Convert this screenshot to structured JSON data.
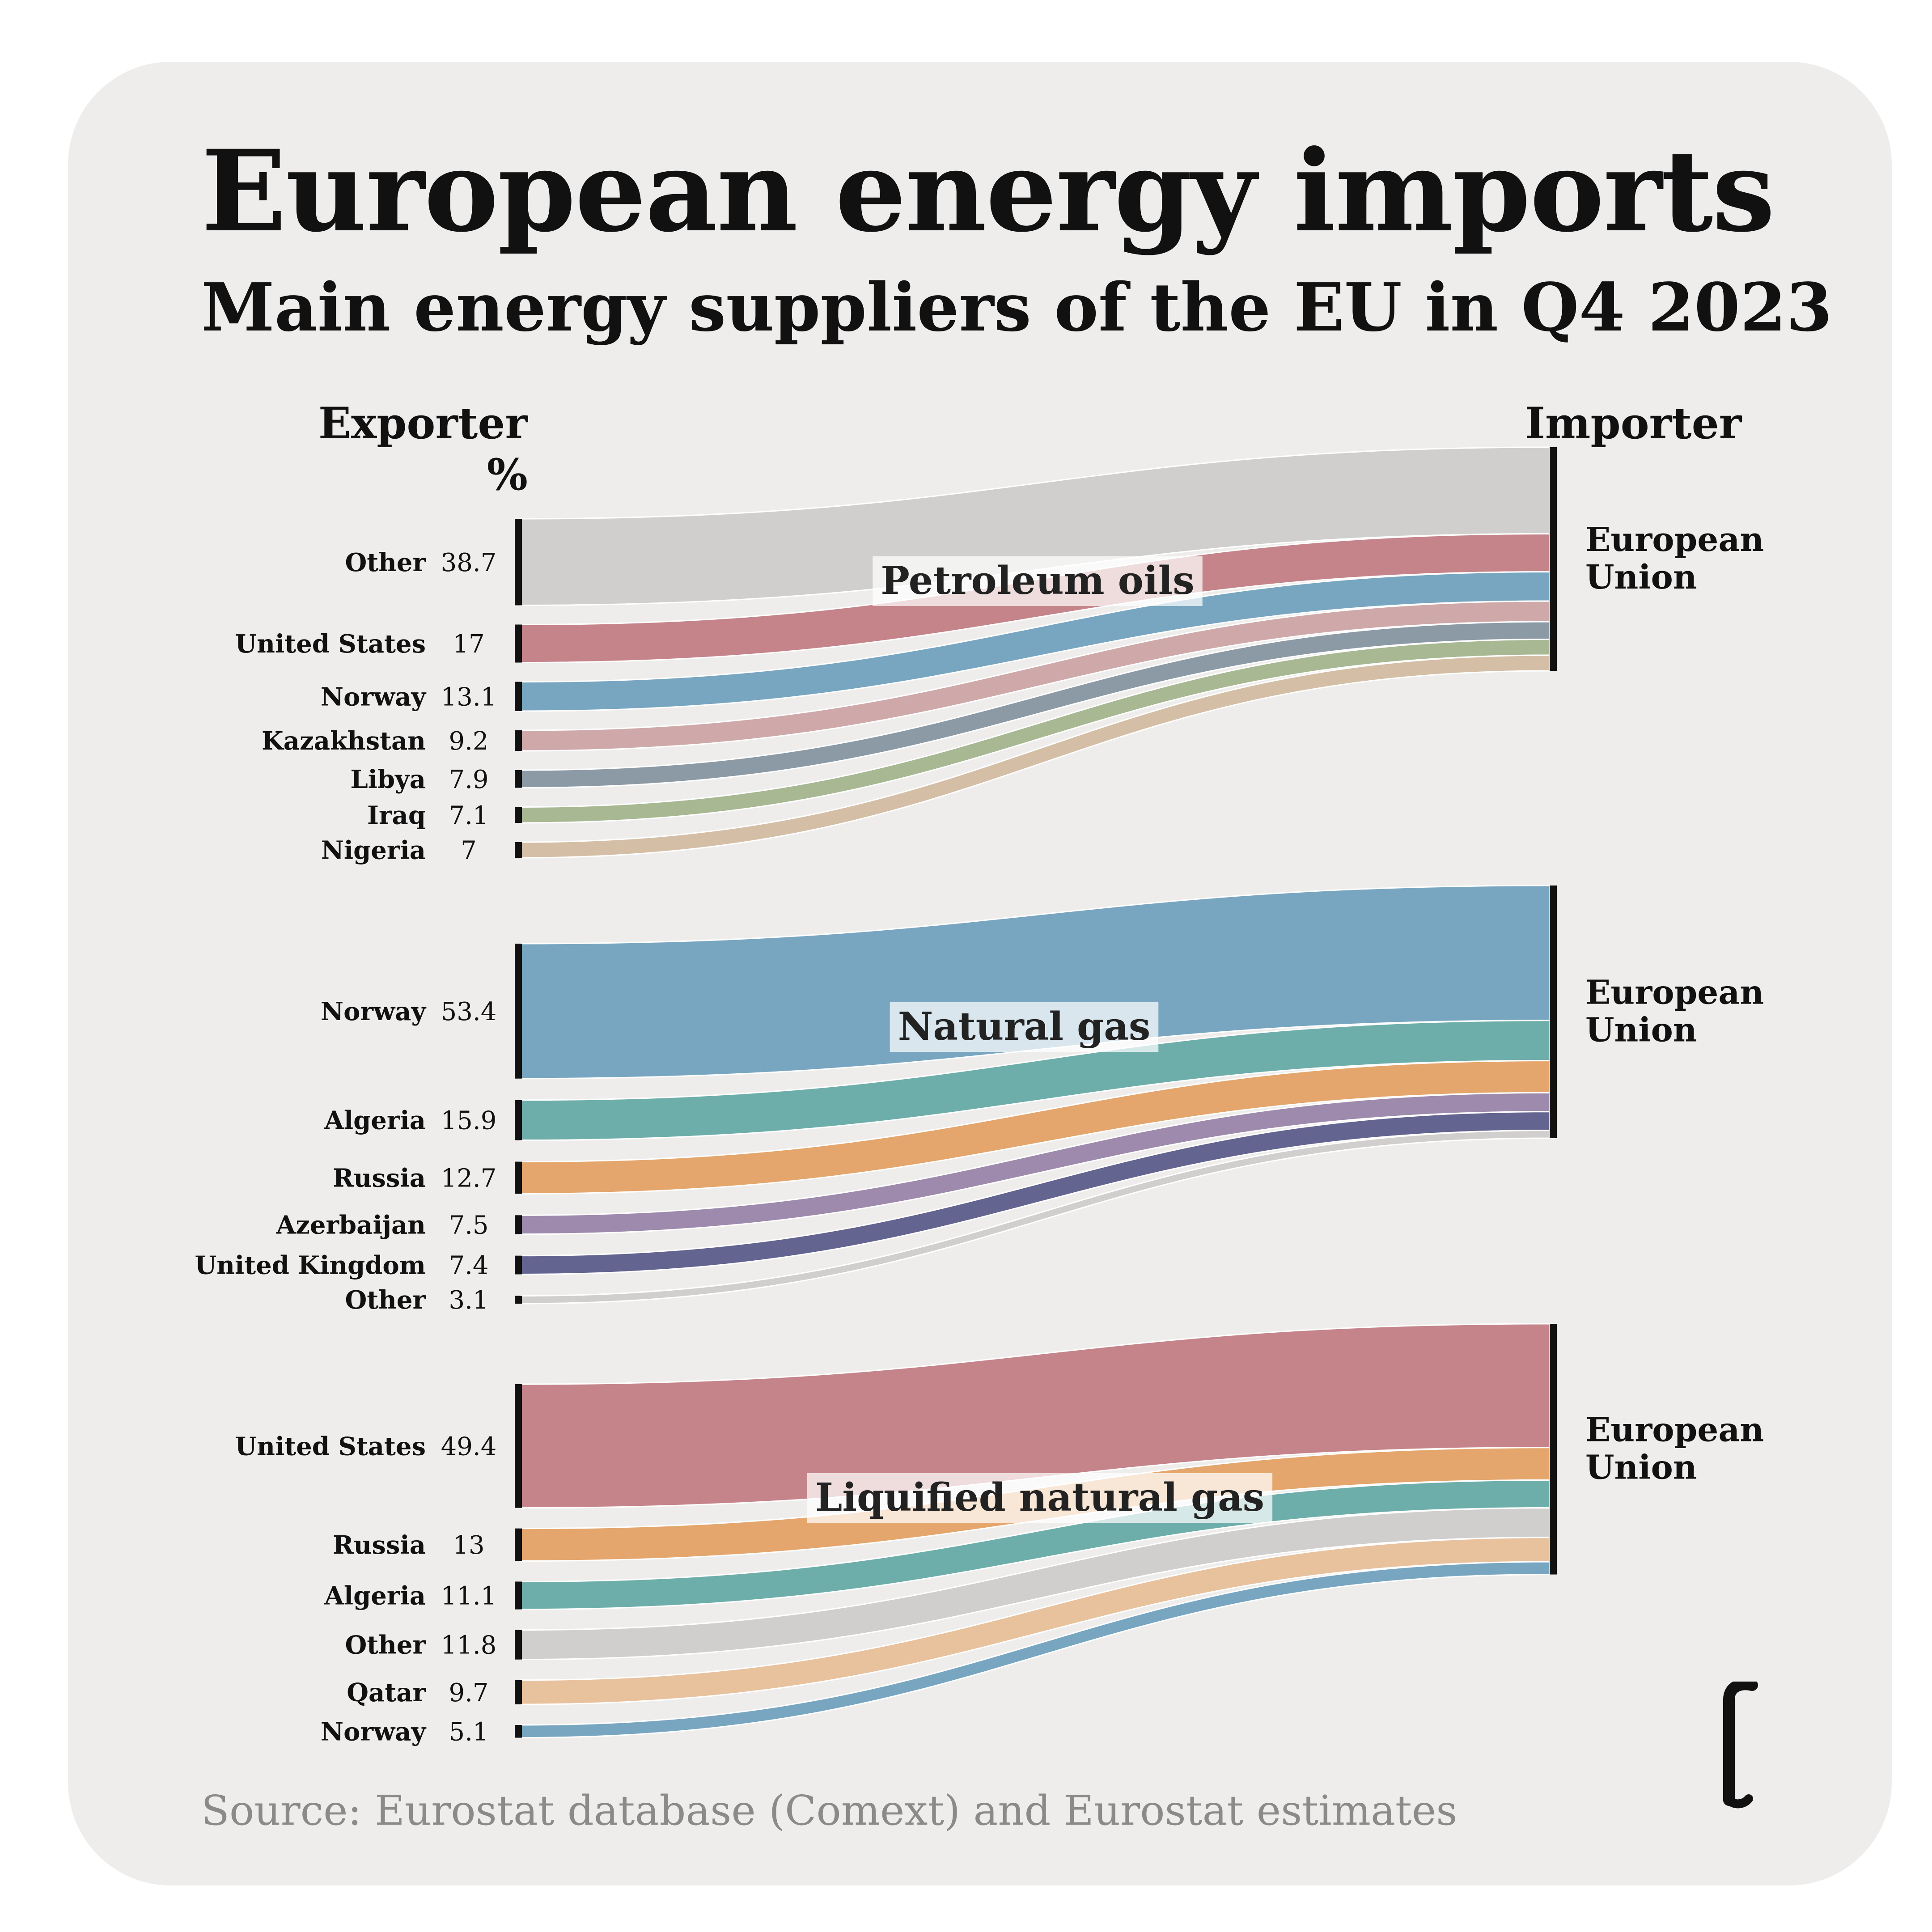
{
  "title": "European energy imports",
  "subtitle": "Main energy suppliers of the EU in Q4 2023",
  "source": "Source: Eurostat database (Comext) and Eurostat estimates",
  "headers": {
    "exporter": "Exporter",
    "unit": "%",
    "importer": "Importer"
  },
  "logo": "euronews-logo-icon",
  "chart_data": [
    {
      "type": "sankey",
      "product": "Petroleum oils",
      "target": [
        "European",
        "Union"
      ],
      "flows": [
        {
          "name": "Other",
          "value": 38.7,
          "label": "38.7",
          "color": "#d0cfcd"
        },
        {
          "name": "United States",
          "value": 17,
          "label": "17",
          "color": "#c5848a"
        },
        {
          "name": "Norway",
          "value": 13.1,
          "label": "13.1",
          "color": "#78a6c1"
        },
        {
          "name": "Kazakhstan",
          "value": 9.2,
          "label": "9.2",
          "color": "#cfa9a9"
        },
        {
          "name": "Libya",
          "value": 7.9,
          "label": "7.9",
          "color": "#8c9aa6"
        },
        {
          "name": "Iraq",
          "value": 7.1,
          "label": "7.1",
          "color": "#a7b892"
        },
        {
          "name": "Nigeria",
          "value": 7,
          "label": "7",
          "color": "#d4bfa6"
        }
      ]
    },
    {
      "type": "sankey",
      "product": "Natural gas",
      "target": [
        "European",
        "Union"
      ],
      "flows": [
        {
          "name": "Norway",
          "value": 53.4,
          "label": "53.4",
          "color": "#78a6c1"
        },
        {
          "name": "Algeria",
          "value": 15.9,
          "label": "15.9",
          "color": "#6eaeaa"
        },
        {
          "name": "Russia",
          "value": 12.7,
          "label": "12.7",
          "color": "#e4a66c"
        },
        {
          "name": "Azerbaijan",
          "value": 7.5,
          "label": "7.5",
          "color": "#9e8aad"
        },
        {
          "name": "United Kingdom",
          "value": 7.4,
          "label": "7.4",
          "color": "#646490"
        },
        {
          "name": "Other",
          "value": 3.1,
          "label": "3.1",
          "color": "#d0cfcd"
        }
      ]
    },
    {
      "type": "sankey",
      "product": "Liquified natural gas",
      "target": [
        "European",
        "Union"
      ],
      "flows": [
        {
          "name": "United States",
          "value": 49.4,
          "label": "49.4",
          "color": "#c5848a"
        },
        {
          "name": "Russia",
          "value": 13,
          "label": "13",
          "color": "#e4a66c"
        },
        {
          "name": "Algeria",
          "value": 11.1,
          "label": "11.1",
          "color": "#6eaeaa"
        },
        {
          "name": "Other",
          "value": 11.8,
          "label": "11.8",
          "color": "#d0cfcd"
        },
        {
          "name": "Qatar",
          "value": 9.7,
          "label": "9.7",
          "color": "#e8c19d"
        },
        {
          "name": "Norway",
          "value": 5.1,
          "label": "5.1",
          "color": "#78a6c1"
        }
      ]
    }
  ]
}
